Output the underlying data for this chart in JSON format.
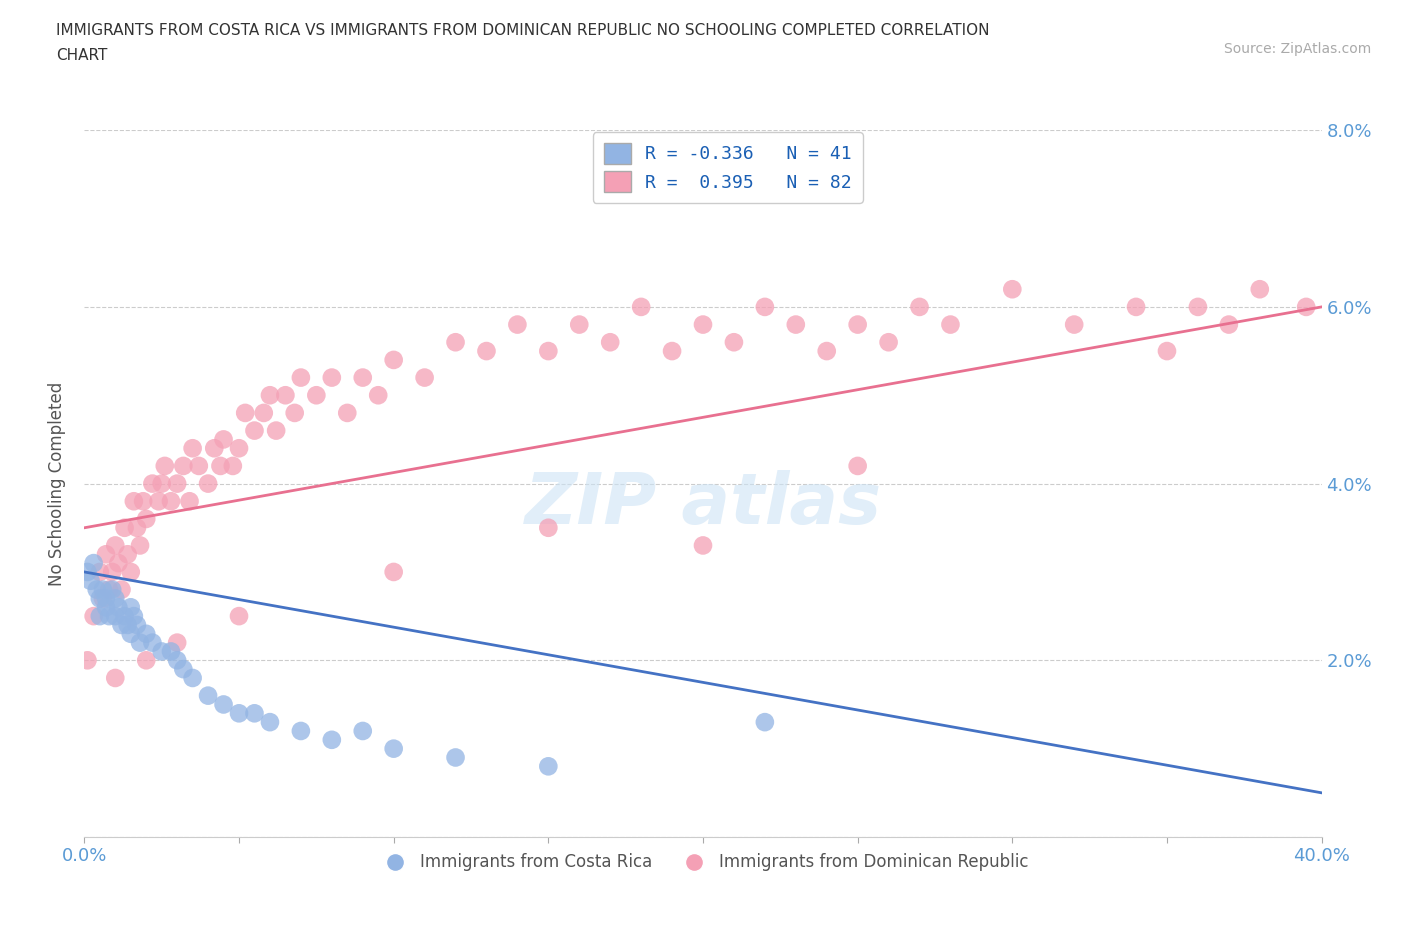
{
  "title": "IMMIGRANTS FROM COSTA RICA VS IMMIGRANTS FROM DOMINICAN REPUBLIC NO SCHOOLING COMPLETED CORRELATION\nCHART",
  "source": "Source: ZipAtlas.com",
  "ylabel": "No Schooling Completed",
  "xlim": [
    0.0,
    0.4
  ],
  "ylim": [
    0.0,
    0.08
  ],
  "xticks": [
    0.0,
    0.05,
    0.1,
    0.15,
    0.2,
    0.25,
    0.3,
    0.35,
    0.4
  ],
  "yticks": [
    0.0,
    0.02,
    0.04,
    0.06,
    0.08
  ],
  "color_blue": "#92b4e3",
  "color_pink": "#f4a0b5",
  "r_blue": -0.336,
  "n_blue": 41,
  "r_pink": 0.395,
  "n_pink": 82,
  "blue_line_start_y": 0.03,
  "blue_line_end_y": 0.005,
  "pink_line_start_y": 0.035,
  "pink_line_end_y": 0.06,
  "blue_scatter_x": [
    0.001,
    0.002,
    0.003,
    0.004,
    0.005,
    0.005,
    0.006,
    0.007,
    0.007,
    0.008,
    0.009,
    0.01,
    0.01,
    0.011,
    0.012,
    0.013,
    0.014,
    0.015,
    0.015,
    0.016,
    0.017,
    0.018,
    0.02,
    0.022,
    0.025,
    0.028,
    0.03,
    0.032,
    0.035,
    0.04,
    0.045,
    0.05,
    0.055,
    0.06,
    0.07,
    0.08,
    0.09,
    0.1,
    0.12,
    0.15,
    0.22
  ],
  "blue_scatter_y": [
    0.03,
    0.029,
    0.031,
    0.028,
    0.027,
    0.025,
    0.028,
    0.027,
    0.026,
    0.025,
    0.028,
    0.027,
    0.025,
    0.026,
    0.024,
    0.025,
    0.024,
    0.026,
    0.023,
    0.025,
    0.024,
    0.022,
    0.023,
    0.022,
    0.021,
    0.021,
    0.02,
    0.019,
    0.018,
    0.016,
    0.015,
    0.014,
    0.014,
    0.013,
    0.012,
    0.011,
    0.012,
    0.01,
    0.009,
    0.008,
    0.013
  ],
  "pink_scatter_x": [
    0.001,
    0.003,
    0.005,
    0.006,
    0.007,
    0.008,
    0.009,
    0.01,
    0.011,
    0.012,
    0.013,
    0.014,
    0.015,
    0.016,
    0.017,
    0.018,
    0.019,
    0.02,
    0.022,
    0.024,
    0.025,
    0.026,
    0.028,
    0.03,
    0.032,
    0.034,
    0.035,
    0.037,
    0.04,
    0.042,
    0.044,
    0.045,
    0.048,
    0.05,
    0.052,
    0.055,
    0.058,
    0.06,
    0.062,
    0.065,
    0.068,
    0.07,
    0.075,
    0.08,
    0.085,
    0.09,
    0.095,
    0.1,
    0.11,
    0.12,
    0.13,
    0.14,
    0.15,
    0.16,
    0.17,
    0.18,
    0.19,
    0.2,
    0.21,
    0.22,
    0.23,
    0.24,
    0.25,
    0.26,
    0.27,
    0.28,
    0.3,
    0.32,
    0.34,
    0.35,
    0.36,
    0.37,
    0.38,
    0.395,
    0.25,
    0.15,
    0.2,
    0.1,
    0.05,
    0.03,
    0.02,
    0.01
  ],
  "pink_scatter_y": [
    0.02,
    0.025,
    0.03,
    0.027,
    0.032,
    0.028,
    0.03,
    0.033,
    0.031,
    0.028,
    0.035,
    0.032,
    0.03,
    0.038,
    0.035,
    0.033,
    0.038,
    0.036,
    0.04,
    0.038,
    0.04,
    0.042,
    0.038,
    0.04,
    0.042,
    0.038,
    0.044,
    0.042,
    0.04,
    0.044,
    0.042,
    0.045,
    0.042,
    0.044,
    0.048,
    0.046,
    0.048,
    0.05,
    0.046,
    0.05,
    0.048,
    0.052,
    0.05,
    0.052,
    0.048,
    0.052,
    0.05,
    0.054,
    0.052,
    0.056,
    0.055,
    0.058,
    0.055,
    0.058,
    0.056,
    0.06,
    0.055,
    0.058,
    0.056,
    0.06,
    0.058,
    0.055,
    0.058,
    0.056,
    0.06,
    0.058,
    0.062,
    0.058,
    0.06,
    0.055,
    0.06,
    0.058,
    0.062,
    0.06,
    0.042,
    0.035,
    0.033,
    0.03,
    0.025,
    0.022,
    0.02,
    0.018
  ]
}
